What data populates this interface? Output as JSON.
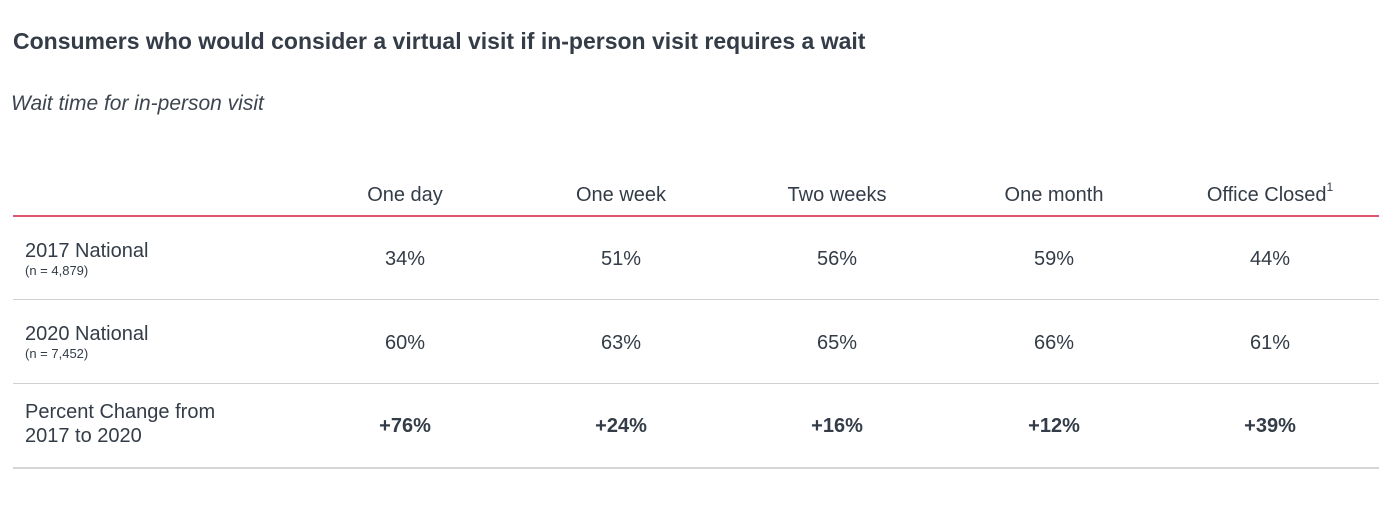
{
  "title": "Consumers who would consider a virtual visit if in-person visit requires a wait",
  "subtitle": "Wait time for in-person visit",
  "columns": [
    {
      "label": "One day",
      "sup": ""
    },
    {
      "label": "One week",
      "sup": ""
    },
    {
      "label": "Two weeks",
      "sup": ""
    },
    {
      "label": "One month",
      "sup": ""
    },
    {
      "label": "Office Closed",
      "sup": "1"
    }
  ],
  "rows": [
    {
      "label": "2017 National",
      "note": "(n = 4,879)",
      "values": [
        "34%",
        "51%",
        "56%",
        "59%",
        "44%"
      ]
    },
    {
      "label": "2020 National",
      "note": "(n = 7,452)",
      "values": [
        "60%",
        "63%",
        "65%",
        "66%",
        "61%"
      ]
    },
    {
      "label_line1": "Percent Change from",
      "label_line2": "2017 to 2020",
      "values": [
        "+76%",
        "+24%",
        "+16%",
        "+12%",
        "+39%"
      ]
    }
  ],
  "colors": {
    "header_rule": "#e0566f",
    "row_rule": "#d0d0d0",
    "text": "#333c47"
  }
}
